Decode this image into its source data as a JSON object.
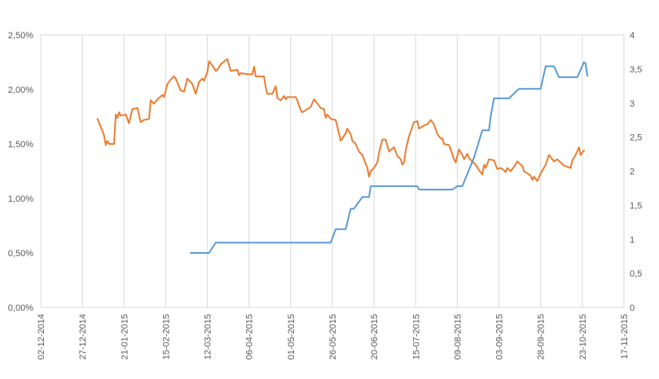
{
  "chart_data": {
    "type": "line",
    "title": "",
    "xlabel": "",
    "ylabel": "",
    "x_ticks": [
      "02-12-2014",
      "27-12-2014",
      "21-01-2015",
      "15-02-2015",
      "12-03-2015",
      "06-04-2015",
      "01-05-2015",
      "26-05-2015",
      "20-06-2015",
      "15-07-2015",
      "09-08-2015",
      "03-09-2015",
      "28-09-2015",
      "23-10-2015",
      "17-11-2015"
    ],
    "y_left_ticks": [
      "0,00%",
      "0,50%",
      "1,00%",
      "1,50%",
      "2,00%",
      "2,50%"
    ],
    "y_right_ticks": [
      "0",
      "0,5",
      "1",
      "1,5",
      "2",
      "2,5",
      "3",
      "3,5",
      "4"
    ],
    "ylim_left": [
      0,
      2.5
    ],
    "ylim_right": [
      0,
      4
    ],
    "xlim": [
      "02-12-2014",
      "17-11-2015"
    ],
    "grid": "vertical",
    "colors": {
      "orange": "#ed7d31",
      "blue": "#5b9bd5",
      "grid": "#d9d9d9",
      "text": "#595959"
    },
    "series": [
      {
        "axis": "left",
        "color": "#ed7d31",
        "points": [
          [
            "2015-01-05",
            1.73
          ],
          [
            "2015-01-07",
            1.66
          ],
          [
            "2015-01-09",
            1.58
          ],
          [
            "2015-01-10",
            1.49
          ],
          [
            "2015-01-11",
            1.53
          ],
          [
            "2015-01-12",
            1.5
          ],
          [
            "2015-01-15",
            1.5
          ],
          [
            "2015-01-16",
            1.77
          ],
          [
            "2015-01-17",
            1.74
          ],
          [
            "2015-01-18",
            1.79
          ],
          [
            "2015-01-19",
            1.76
          ],
          [
            "2015-01-22",
            1.77
          ],
          [
            "2015-01-24",
            1.69
          ],
          [
            "2015-01-26",
            1.82
          ],
          [
            "2015-01-29",
            1.83
          ],
          [
            "2015-01-31",
            1.7
          ],
          [
            "2015-02-02",
            1.72
          ],
          [
            "2015-02-05",
            1.73
          ],
          [
            "2015-02-06",
            1.9
          ],
          [
            "2015-02-08",
            1.87
          ],
          [
            "2015-02-10",
            1.91
          ],
          [
            "2015-02-13",
            1.95
          ],
          [
            "2015-02-14",
            1.93
          ],
          [
            "2015-02-16",
            2.05
          ],
          [
            "2015-02-18",
            2.09
          ],
          [
            "2015-02-20",
            2.12
          ],
          [
            "2015-02-21",
            2.1
          ],
          [
            "2015-02-24",
            1.99
          ],
          [
            "2015-02-26",
            1.98
          ],
          [
            "2015-02-28",
            2.1
          ],
          [
            "2015-03-03",
            2.05
          ],
          [
            "2015-03-05",
            1.96
          ],
          [
            "2015-03-07",
            2.07
          ],
          [
            "2015-03-09",
            2.1
          ],
          [
            "2015-03-10",
            2.08
          ],
          [
            "2015-03-12",
            2.16
          ],
          [
            "2015-03-13",
            2.26
          ],
          [
            "2015-03-15",
            2.22
          ],
          [
            "2015-03-17",
            2.17
          ],
          [
            "2015-03-18",
            2.18
          ],
          [
            "2015-03-20",
            2.23
          ],
          [
            "2015-03-24",
            2.28
          ],
          [
            "2015-03-26",
            2.17
          ],
          [
            "2015-03-30",
            2.18
          ],
          [
            "2015-03-31",
            2.13
          ],
          [
            "2015-04-01",
            2.15
          ],
          [
            "2015-04-05",
            2.14
          ],
          [
            "2015-04-08",
            2.14
          ],
          [
            "2015-04-09",
            2.21
          ],
          [
            "2015-04-10",
            2.12
          ],
          [
            "2015-04-15",
            2.12
          ],
          [
            "2015-04-16",
            2.02
          ],
          [
            "2015-04-17",
            1.96
          ],
          [
            "2015-04-20",
            1.96
          ],
          [
            "2015-04-22",
            2.03
          ],
          [
            "2015-04-23",
            1.92
          ],
          [
            "2015-04-25",
            1.9
          ],
          [
            "2015-04-27",
            1.94
          ],
          [
            "2015-04-28",
            1.91
          ],
          [
            "2015-04-29",
            1.93
          ],
          [
            "2015-05-04",
            1.93
          ],
          [
            "2015-05-05",
            1.9
          ],
          [
            "2015-05-07",
            1.81
          ],
          [
            "2015-05-08",
            1.79
          ],
          [
            "2015-05-11",
            1.82
          ],
          [
            "2015-05-13",
            1.84
          ],
          [
            "2015-05-15",
            1.91
          ],
          [
            "2015-05-17",
            1.87
          ],
          [
            "2015-05-19",
            1.83
          ],
          [
            "2015-05-21",
            1.82
          ],
          [
            "2015-05-22",
            1.74
          ],
          [
            "2015-05-23",
            1.77
          ],
          [
            "2015-05-25",
            1.73
          ],
          [
            "2015-05-28",
            1.72
          ],
          [
            "2015-05-29",
            1.66
          ],
          [
            "2015-05-31",
            1.53
          ],
          [
            "2015-06-01",
            1.55
          ],
          [
            "2015-06-03",
            1.6
          ],
          [
            "2015-06-04",
            1.64
          ],
          [
            "2015-06-06",
            1.59
          ],
          [
            "2015-06-07",
            1.53
          ],
          [
            "2015-06-09",
            1.5
          ],
          [
            "2015-06-11",
            1.43
          ],
          [
            "2015-06-13",
            1.4
          ],
          [
            "2015-06-15",
            1.32
          ],
          [
            "2015-06-16",
            1.28
          ],
          [
            "2015-06-17",
            1.2
          ],
          [
            "2015-06-18",
            1.25
          ],
          [
            "2015-06-20",
            1.28
          ],
          [
            "2015-06-22",
            1.33
          ],
          [
            "2015-06-23",
            1.42
          ],
          [
            "2015-06-25",
            1.54
          ],
          [
            "2015-06-27",
            1.54
          ],
          [
            "2015-06-29",
            1.43
          ],
          [
            "2015-07-02",
            1.47
          ],
          [
            "2015-07-04",
            1.39
          ],
          [
            "2015-07-06",
            1.36
          ],
          [
            "2015-07-07",
            1.31
          ],
          [
            "2015-07-08",
            1.33
          ],
          [
            "2015-07-09",
            1.44
          ],
          [
            "2015-07-11",
            1.57
          ],
          [
            "2015-07-14",
            1.7
          ],
          [
            "2015-07-16",
            1.71
          ],
          [
            "2015-07-17",
            1.64
          ],
          [
            "2015-07-20",
            1.67
          ],
          [
            "2015-07-22",
            1.68
          ],
          [
            "2015-07-24",
            1.72
          ],
          [
            "2015-07-26",
            1.68
          ],
          [
            "2015-07-28",
            1.59
          ],
          [
            "2015-07-30",
            1.55
          ],
          [
            "2015-07-31",
            1.55
          ],
          [
            "2015-08-01",
            1.5
          ],
          [
            "2015-08-04",
            1.49
          ],
          [
            "2015-08-05",
            1.45
          ],
          [
            "2015-08-07",
            1.36
          ],
          [
            "2015-08-08",
            1.33
          ],
          [
            "2015-08-09",
            1.39
          ],
          [
            "2015-08-10",
            1.45
          ],
          [
            "2015-08-12",
            1.4
          ],
          [
            "2015-08-13",
            1.36
          ],
          [
            "2015-08-15",
            1.41
          ],
          [
            "2015-08-16",
            1.37
          ],
          [
            "2015-08-20",
            1.31
          ],
          [
            "2015-08-22",
            1.26
          ],
          [
            "2015-08-24",
            1.22
          ],
          [
            "2015-08-25",
            1.31
          ],
          [
            "2015-08-26",
            1.28
          ],
          [
            "2015-08-28",
            1.36
          ],
          [
            "2015-08-31",
            1.35
          ],
          [
            "2015-09-02",
            1.27
          ],
          [
            "2015-09-04",
            1.28
          ],
          [
            "2015-09-06",
            1.26
          ],
          [
            "2015-09-07",
            1.24
          ],
          [
            "2015-09-08",
            1.28
          ],
          [
            "2015-09-10",
            1.25
          ],
          [
            "2015-09-12",
            1.29
          ],
          [
            "2015-09-14",
            1.34
          ],
          [
            "2015-09-16",
            1.31
          ],
          [
            "2015-09-17",
            1.3
          ],
          [
            "2015-09-18",
            1.25
          ],
          [
            "2015-09-20",
            1.23
          ],
          [
            "2015-09-22",
            1.21
          ],
          [
            "2015-09-23",
            1.17
          ],
          [
            "2015-09-24",
            1.2
          ],
          [
            "2015-09-26",
            1.16
          ],
          [
            "2015-09-28",
            1.23
          ],
          [
            "2015-10-01",
            1.31
          ],
          [
            "2015-10-03",
            1.4
          ],
          [
            "2015-10-06",
            1.34
          ],
          [
            "2015-10-08",
            1.36
          ],
          [
            "2015-10-10",
            1.33
          ],
          [
            "2015-10-12",
            1.3
          ],
          [
            "2015-10-16",
            1.28
          ],
          [
            "2015-10-17",
            1.35
          ],
          [
            "2015-10-19",
            1.4
          ],
          [
            "2015-10-21",
            1.47
          ],
          [
            "2015-10-22",
            1.4
          ],
          [
            "2015-10-24",
            1.44
          ]
        ]
      },
      {
        "axis": "right",
        "color": "#5b9bd5",
        "points": [
          [
            "2015-03-02",
            0.8
          ],
          [
            "2015-03-13",
            0.8
          ],
          [
            "2015-03-17",
            0.95
          ],
          [
            "2015-05-25",
            0.95
          ],
          [
            "2015-05-28",
            1.15
          ],
          [
            "2015-06-03",
            1.15
          ],
          [
            "2015-06-06",
            1.45
          ],
          [
            "2015-06-08",
            1.45
          ],
          [
            "2015-06-13",
            1.62
          ],
          [
            "2015-06-17",
            1.62
          ],
          [
            "2015-06-18",
            1.78
          ],
          [
            "2015-07-16",
            1.78
          ],
          [
            "2015-07-17",
            1.73
          ],
          [
            "2015-08-06",
            1.73
          ],
          [
            "2015-08-09",
            1.78
          ],
          [
            "2015-08-12",
            1.78
          ],
          [
            "2015-08-19",
            2.2
          ],
          [
            "2015-08-24",
            2.6
          ],
          [
            "2015-08-28",
            2.6
          ],
          [
            "2015-08-29",
            2.8
          ],
          [
            "2015-08-31",
            3.07
          ],
          [
            "2015-09-09",
            3.07
          ],
          [
            "2015-09-15",
            3.21
          ],
          [
            "2015-09-28",
            3.21
          ],
          [
            "2015-09-30",
            3.43
          ],
          [
            "2015-10-01",
            3.54
          ],
          [
            "2015-10-06",
            3.54
          ],
          [
            "2015-10-09",
            3.38
          ],
          [
            "2015-10-20",
            3.38
          ],
          [
            "2015-10-24",
            3.6
          ],
          [
            "2015-10-25",
            3.58
          ],
          [
            "2015-10-26",
            3.4
          ]
        ]
      }
    ]
  }
}
